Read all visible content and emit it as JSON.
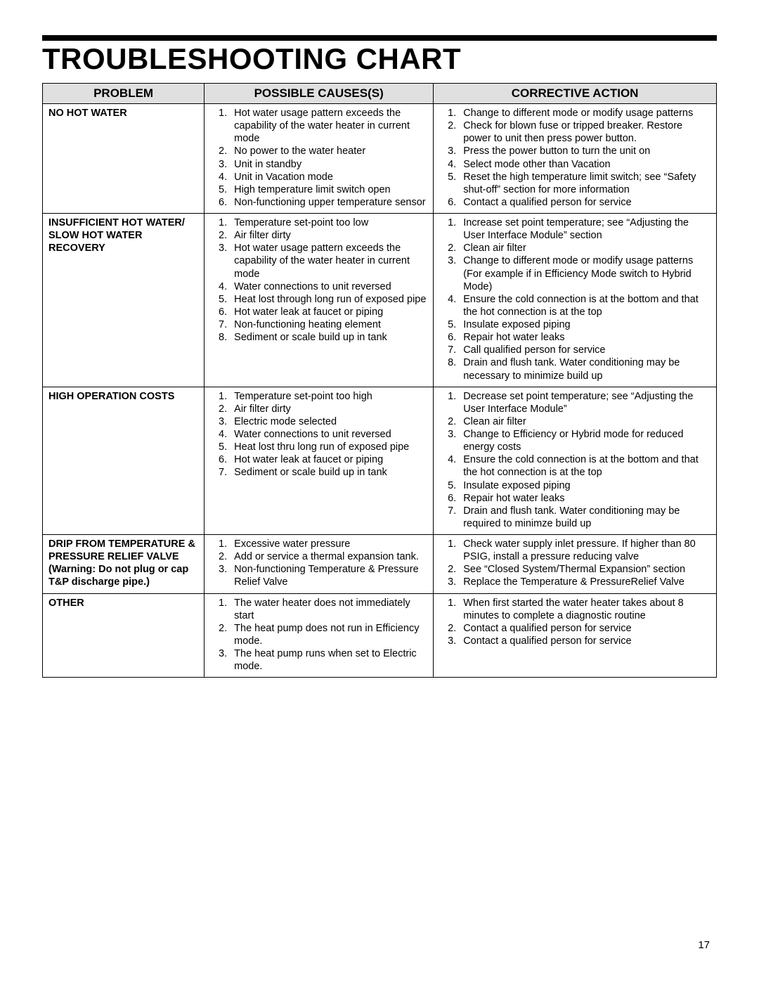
{
  "title": "TROUBLESHOOTING CHART",
  "page_number": "17",
  "columns": {
    "problem": "PROBLEM",
    "causes": "POSSIBLE CAUSES(S)",
    "action": "CORRECTIVE ACTION"
  },
  "col_widths": {
    "problem": "24%",
    "causes": "34%",
    "action": "42%"
  },
  "header_bg": "#e0e0e0",
  "rows": [
    {
      "problem": "NO HOT WATER",
      "causes": [
        "Hot water usage pattern exceeds the capability of the water heater in current mode",
        "No power to the water heater",
        "Unit in standby",
        "Unit in Vacation mode",
        "High temperature limit switch open",
        "Non-functioning upper temperature sensor"
      ],
      "actions": [
        "Change to different mode or modify usage patterns",
        "Check for blown fuse or tripped breaker. Restore power to unit then press power button.",
        "Press the power button to turn the unit on",
        "Select mode other than Vacation",
        "Reset the high temperature limit switch; see “Safety shut-off” section for more information",
        "Contact a qualified person for service"
      ]
    },
    {
      "problem": "INSUFFICIENT HOT WATER/ SLOW HOT WATER RECOVERY",
      "causes": [
        "Temperature set-point too low",
        "Air filter dirty",
        "Hot water usage pattern exceeds the capability of the water heater in current mode",
        "Water connections to unit reversed",
        "Heat lost through long run of exposed pipe",
        "Hot water leak at faucet or piping",
        "Non-functioning heating element",
        "Sediment or scale build up in tank"
      ],
      "actions": [
        "Increase set point temperature; see “Adjusting the User Interface Module” section",
        "Clean air filter",
        "Change to different mode or modify usage patterns (For example if in Efficiency Mode switch to Hybrid Mode)",
        "Ensure the cold connection is at the bottom and that the hot connection is at the top",
        "Insulate exposed piping",
        "Repair hot water leaks",
        "Call qualified person for service",
        "Drain and flush tank.  Water conditioning may be necessary to minimize build up"
      ]
    },
    {
      "problem": "HIGH OPERATION COSTS",
      "causes": [
        "Temperature set-point too high",
        "Air filter dirty",
        "Electric mode selected",
        "Water connections to unit reversed",
        "Heat lost thru long run of exposed pipe",
        "Hot water leak at faucet or piping",
        "Sediment or scale build up in tank"
      ],
      "actions": [
        "Decrease set point temperature; see “Adjusting the User Interface Module”",
        "Clean air filter",
        "Change to Efficiency or Hybrid mode for reduced energy costs",
        "Ensure the cold connection is at the bottom and that the hot connection is at the top",
        "Insulate exposed piping",
        "Repair hot water leaks",
        "Drain and flush tank.  Water conditioning may be required to minimze build up"
      ]
    },
    {
      "problem_html": "<span>DRIP FROM TEMPERATURE &amp; PRESSURE RELIEF VALVE</span><br><span class=\"normal\"><b>(Warning: Do not plug or cap T&amp;P discharge pipe.)</b></span>",
      "causes": [
        "Excessive water pressure",
        "Add or service a thermal expansion tank.",
        "Non-functioning Temperature & Pressure Relief Valve"
      ],
      "actions": [
        "Check water supply inlet pressure. If higher than 80 PSIG, install a  pressure reducing valve",
        "See “Closed System/Thermal Expansion” section",
        "Replace the Temperature & PressureRelief Valve"
      ]
    },
    {
      "problem": "OTHER",
      "causes": [
        "The water heater does not immediately start",
        "The heat pump does not run in Efficiency mode.",
        "The heat pump runs when set to Electric mode."
      ],
      "actions": [
        "When first started the water heater takes about 8 minutes to complete a diagnostic routine",
        "Contact a qualified person for service",
        "Contact a qualified person for service"
      ]
    }
  ]
}
